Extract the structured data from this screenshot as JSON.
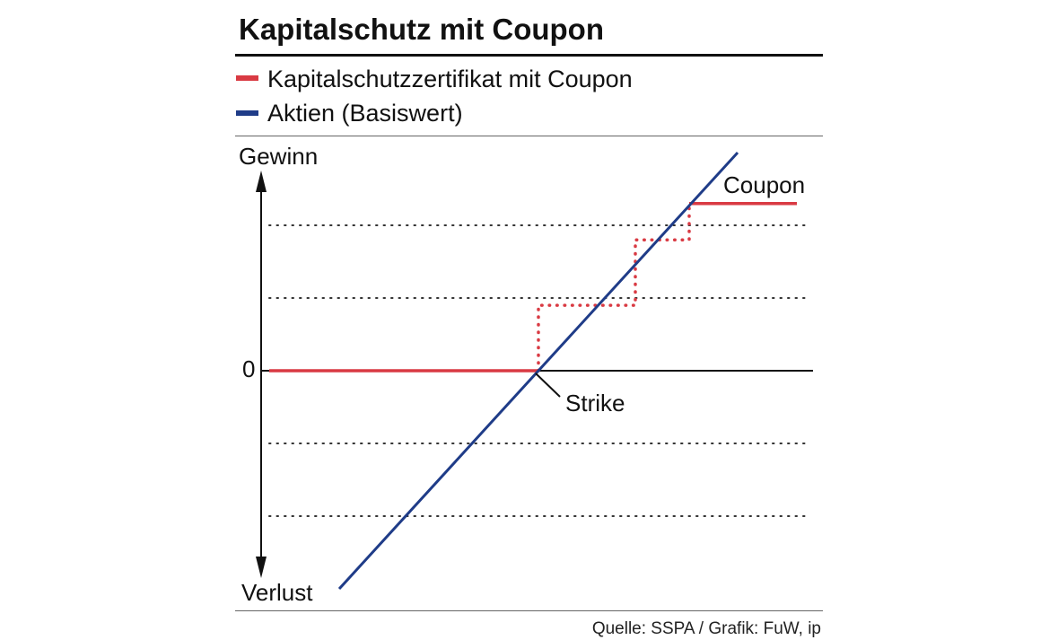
{
  "chart_data": {
    "type": "line",
    "title": "Kapitalschutz mit Coupon",
    "source": "Quelle: SSPA / Grafik: FuW, ip",
    "ylabel_top": "Gewinn",
    "ylabel_bottom": "Verlust",
    "zero_label": "0",
    "colors": {
      "certificate": "#d93a43",
      "stock": "#1f3c88"
    },
    "legend": [
      {
        "label": "Kapitalschutzzertifikat mit Coupon",
        "color": "#d93a43"
      },
      {
        "label": "Aktien (Basiswert)",
        "color": "#1f3c88"
      }
    ],
    "annotations": {
      "strike": "Strike",
      "coupon": "Coupon"
    },
    "grid": "dotted",
    "gridlines_y": [
      -2,
      -1,
      1,
      2
    ],
    "xlim": [
      0,
      10
    ],
    "ylim": [
      -3,
      3
    ],
    "series": [
      {
        "name": "Kapitalschutzzertifikat mit Coupon",
        "style": "solid",
        "points": [
          [
            0,
            0
          ],
          [
            5,
            0
          ]
        ]
      },
      {
        "name": "Kapitalschutzzertifikat mit Coupon",
        "style": "dotted",
        "points": [
          [
            5,
            0
          ],
          [
            5,
            0.9
          ],
          [
            6.8,
            0.9
          ],
          [
            6.8,
            1.8
          ],
          [
            7.8,
            1.8
          ],
          [
            7.8,
            2.3
          ]
        ]
      },
      {
        "name": "Kapitalschutzzertifikat mit Coupon",
        "style": "solid",
        "points": [
          [
            7.8,
            2.3
          ],
          [
            9.8,
            2.3
          ]
        ]
      },
      {
        "name": "Aktien (Basiswert)",
        "style": "solid",
        "points": [
          [
            1.3,
            -3
          ],
          [
            8.7,
            3
          ]
        ]
      }
    ]
  }
}
